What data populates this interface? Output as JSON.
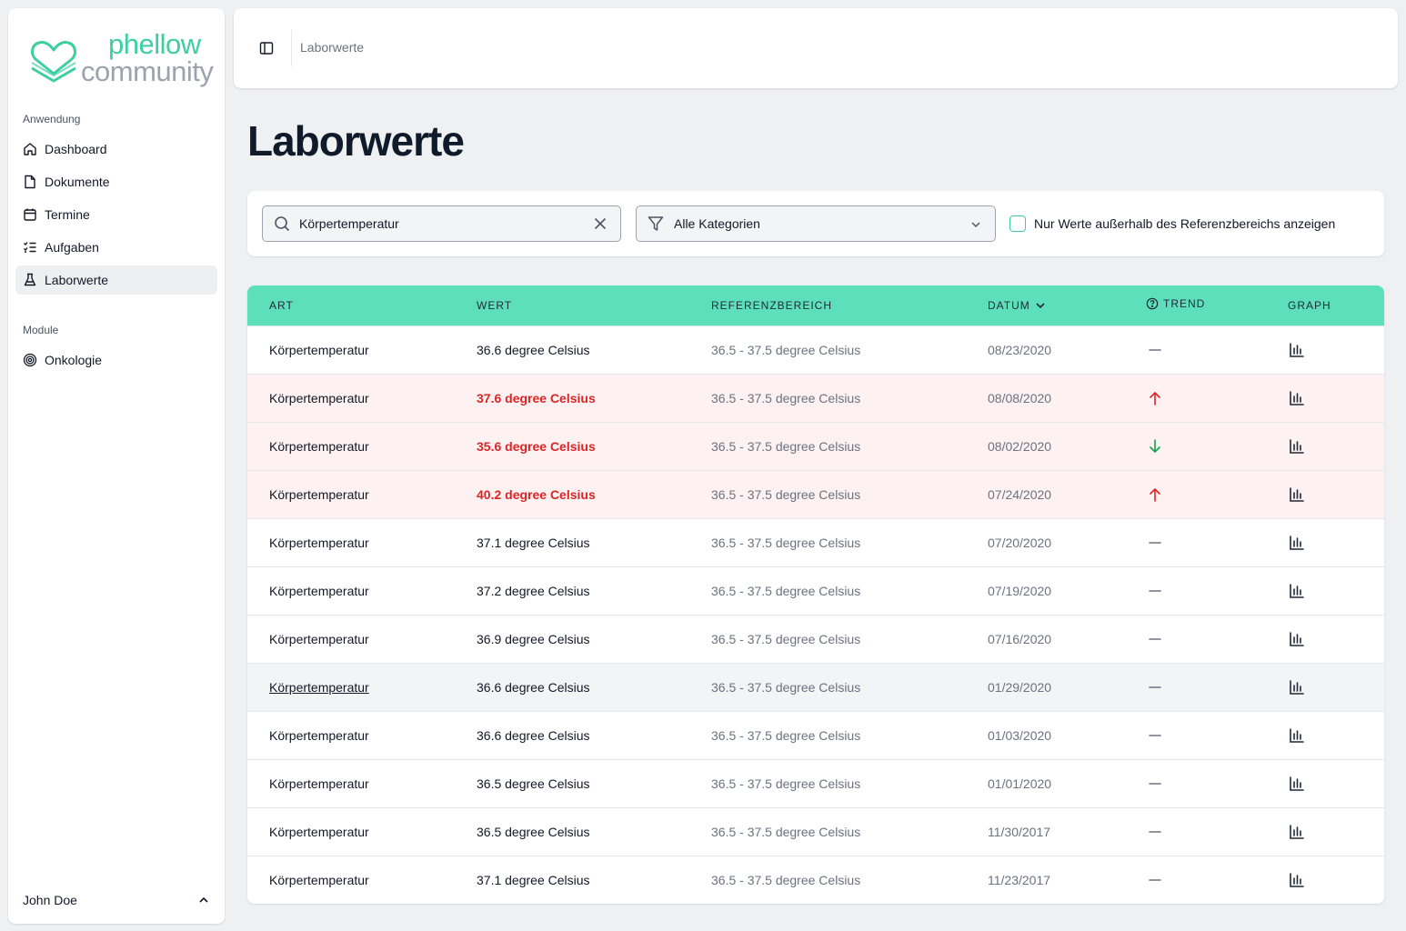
{
  "brand": {
    "line1": "phellow",
    "line2": "community",
    "accent_color": "#3ecfa0"
  },
  "sidebar": {
    "section_app": "Anwendung",
    "items": [
      {
        "label": "Dashboard",
        "icon": "home-icon"
      },
      {
        "label": "Dokumente",
        "icon": "document-icon"
      },
      {
        "label": "Termine",
        "icon": "calendar-icon"
      },
      {
        "label": "Aufgaben",
        "icon": "tasks-icon"
      },
      {
        "label": "Laborwerte",
        "icon": "flask-icon",
        "active": true
      }
    ],
    "section_modules": "Module",
    "modules": [
      {
        "label": "Onkologie",
        "icon": "spiral-icon"
      }
    ],
    "user": {
      "name": "John Doe"
    }
  },
  "header": {
    "breadcrumb": "Laborwerte"
  },
  "page": {
    "title": "Laborwerte"
  },
  "filters": {
    "search_value": "Körpertemperatur",
    "category_selected": "Alle Kategorien",
    "checkbox_label": "Nur Werte außerhalb des Referenzbereichs anzeigen",
    "checkbox_checked": false
  },
  "table": {
    "header_color": "#5ddfbc",
    "columns": {
      "art": "ART",
      "wert": "WERT",
      "referenz": "REFERENZBEREICH",
      "datum": "DATUM",
      "trend": "TREND",
      "graph": "GRAPH"
    },
    "rows": [
      {
        "art": "Körpertemperatur",
        "wert": "36.6 degree Celsius",
        "ref": "36.5 - 37.5 degree Celsius",
        "datum": "08/23/2020",
        "trend": "flat",
        "alert": false
      },
      {
        "art": "Körpertemperatur",
        "wert": "37.6 degree Celsius",
        "ref": "36.5 - 37.5 degree Celsius",
        "datum": "08/08/2020",
        "trend": "up",
        "alert": true
      },
      {
        "art": "Körpertemperatur",
        "wert": "35.6 degree Celsius",
        "ref": "36.5 - 37.5 degree Celsius",
        "datum": "08/02/2020",
        "trend": "down",
        "alert": true
      },
      {
        "art": "Körpertemperatur",
        "wert": "40.2 degree Celsius",
        "ref": "36.5 - 37.5 degree Celsius",
        "datum": "07/24/2020",
        "trend": "up",
        "alert": true
      },
      {
        "art": "Körpertemperatur",
        "wert": "37.1 degree Celsius",
        "ref": "36.5 - 37.5 degree Celsius",
        "datum": "07/20/2020",
        "trend": "flat",
        "alert": false
      },
      {
        "art": "Körpertemperatur",
        "wert": "37.2 degree Celsius",
        "ref": "36.5 - 37.5 degree Celsius",
        "datum": "07/19/2020",
        "trend": "flat",
        "alert": false
      },
      {
        "art": "Körpertemperatur",
        "wert": "36.9 degree Celsius",
        "ref": "36.5 - 37.5 degree Celsius",
        "datum": "07/16/2020",
        "trend": "flat",
        "alert": false
      },
      {
        "art": "Körpertemperatur",
        "wert": "36.6 degree Celsius",
        "ref": "36.5 - 37.5 degree Celsius",
        "datum": "01/29/2020",
        "trend": "flat",
        "alert": false,
        "hover": true
      },
      {
        "art": "Körpertemperatur",
        "wert": "36.6 degree Celsius",
        "ref": "36.5 - 37.5 degree Celsius",
        "datum": "01/03/2020",
        "trend": "flat",
        "alert": false
      },
      {
        "art": "Körpertemperatur",
        "wert": "36.5 degree Celsius",
        "ref": "36.5 - 37.5 degree Celsius",
        "datum": "01/01/2020",
        "trend": "flat",
        "alert": false
      },
      {
        "art": "Körpertemperatur",
        "wert": "36.5 degree Celsius",
        "ref": "36.5 - 37.5 degree Celsius",
        "datum": "11/30/2017",
        "trend": "flat",
        "alert": false
      },
      {
        "art": "Körpertemperatur",
        "wert": "37.1 degree Celsius",
        "ref": "36.5 - 37.5 degree Celsius",
        "datum": "11/23/2017",
        "trend": "flat",
        "alert": false
      }
    ]
  }
}
